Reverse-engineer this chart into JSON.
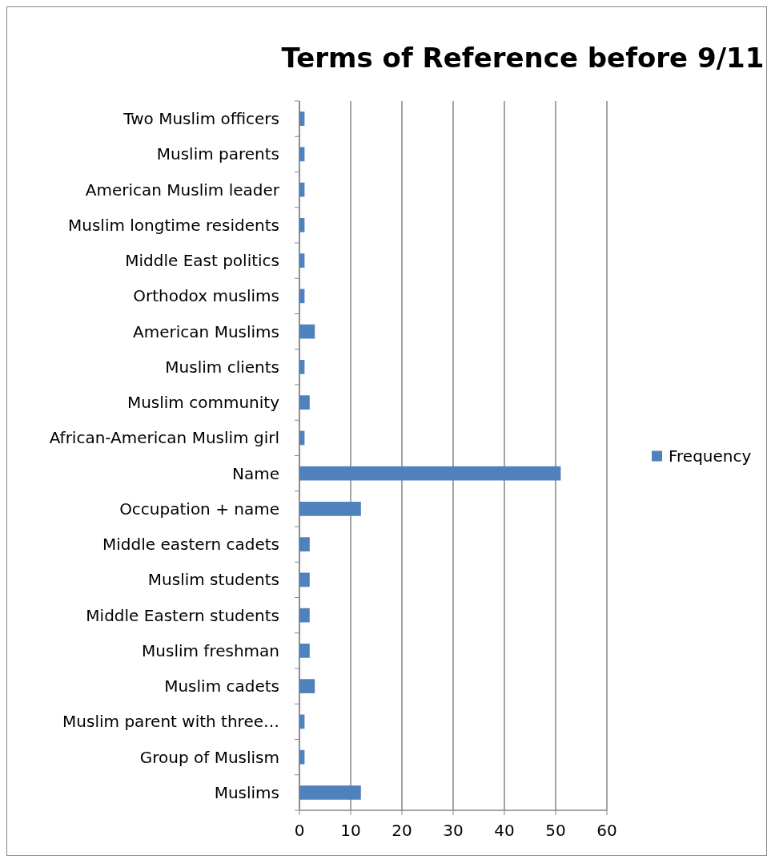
{
  "chart_data": {
    "type": "bar",
    "orientation": "horizontal",
    "title": "Terms of Reference before 9/11",
    "categories": [
      "Two Muslim officers",
      "Muslim parents",
      "American Muslim leader",
      "Muslim longtime residents",
      "Middle East politics",
      "Orthodox muslims",
      "American Muslims",
      "Muslim clients",
      "Muslim community",
      "African-American Muslim girl",
      "Name",
      "Occupation + name",
      "Middle eastern cadets",
      "Muslim students",
      "Middle Eastern students",
      "Muslim freshman",
      "Muslim cadets",
      "Muslim parent with three…",
      "Group of Muslism",
      "Muslims"
    ],
    "series": [
      {
        "name": "Frequency",
        "color": "#4f81bd",
        "values": [
          1,
          1,
          1,
          1,
          1,
          1,
          3,
          1,
          2,
          1,
          51,
          12,
          2,
          2,
          2,
          2,
          3,
          1,
          1,
          12
        ]
      }
    ],
    "xlim": [
      0,
      60
    ],
    "xticks": [
      0,
      10,
      20,
      30,
      40,
      50,
      60
    ],
    "grid": "x",
    "legend": "right"
  }
}
